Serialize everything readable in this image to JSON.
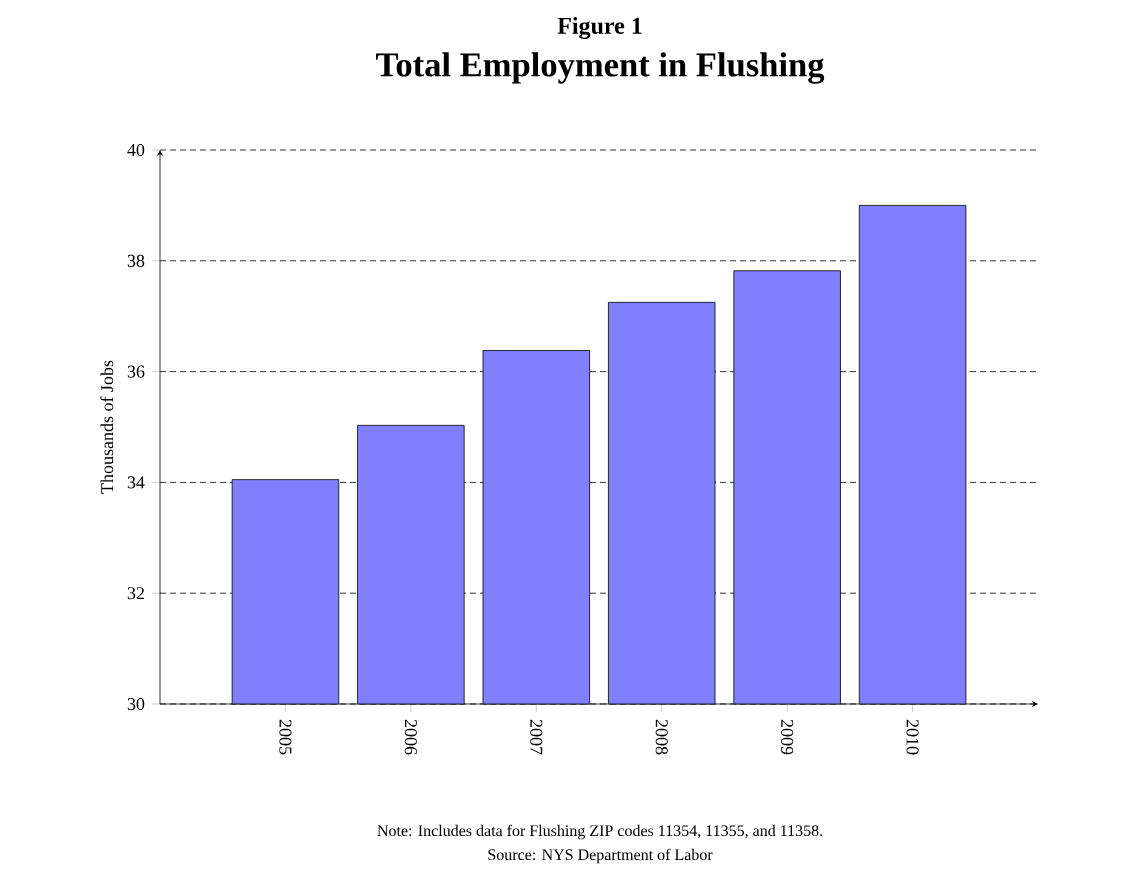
{
  "chart_data": {
    "type": "bar",
    "subtitle": "Figure 1",
    "title": "Total Employment in Flushing",
    "ylabel": "Thousands of Jobs",
    "categories": [
      "2005",
      "2006",
      "2007",
      "2008",
      "2009",
      "2010"
    ],
    "values": [
      34.05,
      35.03,
      36.38,
      37.25,
      37.82,
      39.0
    ],
    "color": "#8080ff",
    "ylim": [
      30,
      40
    ],
    "yticks": [
      30,
      32,
      34,
      36,
      38,
      40
    ],
    "grid": "y",
    "annotations": [
      "Note: Includes data for Flushing ZIP codes 11354, 11355, and 11358.",
      "Source: NYS Department of Labor"
    ]
  }
}
